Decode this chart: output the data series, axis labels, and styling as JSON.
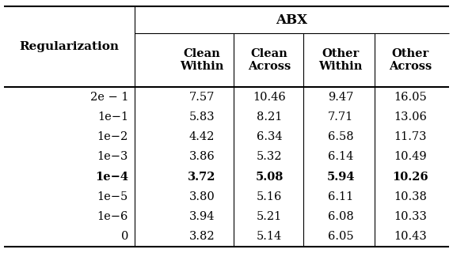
{
  "title": "ABX",
  "col_header_left": "Regularization",
  "col_headers": [
    "Clean\nWithin",
    "Clean\nAcross",
    "Other\nWithin",
    "Other\nAcross"
  ],
  "row_labels": [
    "2e − 1",
    "1e−1",
    "1e−2",
    "1e−3",
    "1e−4",
    "1e−5",
    "1e−6",
    "0"
  ],
  "data": [
    [
      "7.57",
      "10.46",
      "9.47",
      "16.05"
    ],
    [
      "5.83",
      "8.21",
      "7.71",
      "13.06"
    ],
    [
      "4.42",
      "6.34",
      "6.58",
      "11.73"
    ],
    [
      "3.86",
      "5.32",
      "6.14",
      "10.49"
    ],
    [
      "3.72",
      "5.08",
      "5.94",
      "10.26"
    ],
    [
      "3.80",
      "5.16",
      "6.11",
      "10.38"
    ],
    [
      "3.94",
      "5.21",
      "6.08",
      "10.33"
    ],
    [
      "3.82",
      "5.14",
      "6.05",
      "10.43"
    ]
  ],
  "bold_row": 4,
  "background_color": "#ffffff",
  "text_color": "#000000",
  "fontsize": 10.5,
  "header_fontsize": 11
}
